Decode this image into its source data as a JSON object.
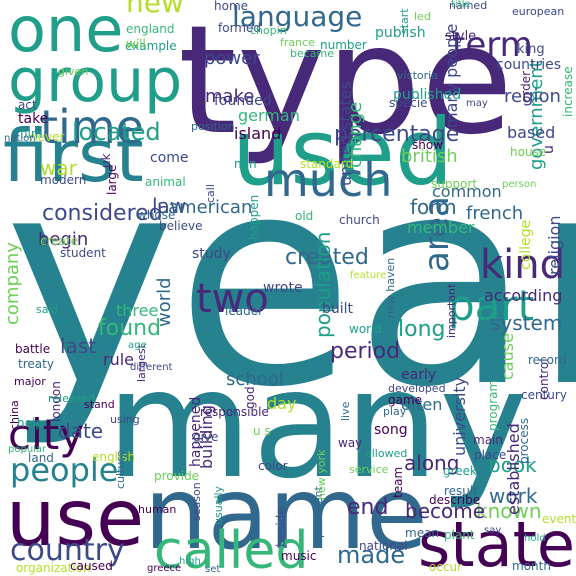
{
  "palette": {
    "background": "#ffffff",
    "colors": [
      "#440154",
      "#482878",
      "#3e4989",
      "#31688e",
      "#26828e",
      "#1f9e89",
      "#35b779",
      "#6ece58",
      "#b5de2b",
      "#fde725"
    ]
  },
  "words": [
    {
      "text": "year",
      "c": "#26828e"
    },
    {
      "text": "many",
      "c": "#26828e"
    },
    {
      "text": "type",
      "c": "#482878"
    },
    {
      "text": "name",
      "c": "#31688e"
    },
    {
      "text": "first",
      "c": "#26828e"
    },
    {
      "text": "used",
      "c": "#1f9e89"
    },
    {
      "text": "use",
      "c": "#440154"
    },
    {
      "text": "state",
      "c": "#440154"
    },
    {
      "text": "called",
      "c": "#35b779"
    },
    {
      "text": "one",
      "c": "#1f9e89"
    },
    {
      "text": "group",
      "c": "#1f9e89"
    },
    {
      "text": "time",
      "c": "#31688e"
    },
    {
      "text": "much",
      "c": "#31688e"
    },
    {
      "text": "city",
      "c": "#440154"
    },
    {
      "text": "people",
      "c": "#26828e"
    },
    {
      "text": "country",
      "c": "#3e4989"
    },
    {
      "text": "kind",
      "c": "#482878"
    },
    {
      "text": "two",
      "c": "#482878"
    },
    {
      "text": "part",
      "c": "#1f9e89"
    },
    {
      "text": "area",
      "c": "#31688e"
    },
    {
      "text": "language",
      "c": "#31688e"
    },
    {
      "text": "term",
      "c": "#482878"
    },
    {
      "text": "located",
      "c": "#1f9e89"
    },
    {
      "text": "new",
      "c": "#b5de2b"
    },
    {
      "text": "made",
      "c": "#31688e"
    },
    {
      "text": "work",
      "c": "#31688e"
    },
    {
      "text": "found",
      "c": "#35b779"
    },
    {
      "text": "percentage",
      "c": "#3e4989"
    },
    {
      "text": "considered",
      "c": "#3e4989"
    },
    {
      "text": "created",
      "c": "#31688e"
    },
    {
      "text": "end",
      "c": "#482878"
    },
    {
      "text": "known",
      "c": "#6ece58"
    },
    {
      "text": "period",
      "c": "#482878"
    },
    {
      "text": "population",
      "c": "#1f9e89"
    },
    {
      "text": "long",
      "c": "#1f9e89"
    },
    {
      "text": "become",
      "c": "#482878"
    },
    {
      "text": "along",
      "c": "#482878"
    },
    {
      "text": "book",
      "c": "#1f9e89"
    },
    {
      "text": "system",
      "c": "#31688e"
    },
    {
      "text": "last",
      "c": "#3e4989"
    },
    {
      "text": "date",
      "c": "#3e4989"
    },
    {
      "text": "law",
      "c": "#3e4989"
    },
    {
      "text": "war",
      "c": "#b5de2b"
    },
    {
      "text": "begin",
      "c": "#482878"
    },
    {
      "text": "form",
      "c": "#31688e"
    },
    {
      "text": "school",
      "c": "#31688e"
    },
    {
      "text": "power",
      "c": "#3e4989"
    },
    {
      "text": "make",
      "c": "#482878"
    },
    {
      "text": "american",
      "c": "#31688e"
    },
    {
      "text": "government",
      "c": "#1f9e89"
    },
    {
      "text": "region",
      "c": "#3e4989"
    },
    {
      "text": "french",
      "c": "#31688e"
    },
    {
      "text": "religion",
      "c": "#3e4989"
    },
    {
      "text": "common",
      "c": "#31688e"
    },
    {
      "text": "member",
      "c": "#35b779"
    },
    {
      "text": "change",
      "c": "#35b779"
    },
    {
      "text": "based",
      "c": "#3e4989"
    },
    {
      "text": "united states",
      "c": "#3e4989"
    },
    {
      "text": "world",
      "c": "#31688e"
    },
    {
      "text": "company",
      "c": "#6ece58"
    },
    {
      "text": "according",
      "c": "#482878"
    },
    {
      "text": "cause",
      "c": "#6ece58"
    },
    {
      "text": "often",
      "c": "#31688e"
    },
    {
      "text": "university",
      "c": "#3e4989"
    },
    {
      "text": "established",
      "c": "#482878"
    },
    {
      "text": "building",
      "c": "#482878"
    },
    {
      "text": "happened",
      "c": "#482878"
    },
    {
      "text": "day",
      "c": "#b5de2b"
    },
    {
      "text": "three",
      "c": "#35b779"
    },
    {
      "text": "rule",
      "c": "#482878"
    },
    {
      "text": "built",
      "c": "#3e4989"
    },
    {
      "text": "early",
      "c": "#482878"
    },
    {
      "text": "founded",
      "c": "#3e4989"
    },
    {
      "text": "german",
      "c": "#35b779"
    },
    {
      "text": "island",
      "c": "#440154"
    },
    {
      "text": "take",
      "c": "#440154"
    },
    {
      "text": "come",
      "c": "#3e4989"
    },
    {
      "text": "study",
      "c": "#3e4989"
    },
    {
      "text": "wrote",
      "c": "#3e4989"
    },
    {
      "text": "many people",
      "c": "#3e4989"
    },
    {
      "text": "british",
      "c": "#6ece58"
    },
    {
      "text": "u",
      "c": "#482878"
    },
    {
      "text": "publish",
      "c": "#1f9e89"
    },
    {
      "text": "countries",
      "c": "#3e4989"
    },
    {
      "text": "style",
      "c": "#482878"
    },
    {
      "text": "king",
      "c": "#3e4989"
    },
    {
      "text": "order",
      "c": "#482878"
    },
    {
      "text": "increase",
      "c": "#35b779"
    },
    {
      "text": "published",
      "c": "#1f9e89"
    },
    {
      "text": "specie",
      "c": "#3e4989"
    },
    {
      "text": "show",
      "c": "#440154"
    },
    {
      "text": "house",
      "c": "#6ece58"
    },
    {
      "text": "never",
      "c": "#b5de2b"
    },
    {
      "text": "modern",
      "c": "#3e4989"
    },
    {
      "text": "large",
      "c": "#440154"
    },
    {
      "text": "animal",
      "c": "#35b779"
    },
    {
      "text": "standard",
      "c": "#b5de2b"
    },
    {
      "text": "support",
      "c": "#6ece58"
    },
    {
      "text": "old",
      "c": "#35b779"
    },
    {
      "text": "church",
      "c": "#3e4989"
    },
    {
      "text": "whose",
      "c": "#31688e"
    },
    {
      "text": "believe",
      "c": "#3e4989"
    },
    {
      "text": "create",
      "c": "#6ece58"
    },
    {
      "text": "student",
      "c": "#3e4989"
    },
    {
      "text": "happen",
      "c": "#1f9e89"
    },
    {
      "text": "new haven",
      "c": "#31688e"
    },
    {
      "text": "important",
      "c": "#482878"
    },
    {
      "text": "college",
      "c": "#b5de2b"
    },
    {
      "text": "world",
      "c": "#1f9e89"
    },
    {
      "text": "leader",
      "c": "#31688e"
    },
    {
      "text": "largest",
      "c": "#482878"
    },
    {
      "text": "london",
      "c": "#482878"
    },
    {
      "text": "treaty",
      "c": "#31688e"
    },
    {
      "text": "battle",
      "c": "#440154"
    },
    {
      "text": "said",
      "c": "#1f9e89"
    },
    {
      "text": "major",
      "c": "#440154"
    },
    {
      "text": "china",
      "c": "#440154"
    },
    {
      "text": "released",
      "c": "#1f9e89"
    },
    {
      "text": "stand",
      "c": "#440154"
    },
    {
      "text": "help",
      "c": "#1f9e89"
    },
    {
      "text": "god",
      "c": "#482878"
    },
    {
      "text": "live",
      "c": "#31688e"
    },
    {
      "text": "developed",
      "c": "#3e4989"
    },
    {
      "text": "game",
      "c": "#440154"
    },
    {
      "text": "play",
      "c": "#31688e"
    },
    {
      "text": "song",
      "c": "#440154"
    },
    {
      "text": "allowed",
      "c": "#1f9e89"
    },
    {
      "text": "way",
      "c": "#482878"
    },
    {
      "text": "land",
      "c": "#31688e"
    },
    {
      "text": "english",
      "c": "#b5de2b"
    },
    {
      "text": "culture",
      "c": "#31688e"
    },
    {
      "text": "provide",
      "c": "#6ece58"
    },
    {
      "text": "human",
      "c": "#440154"
    },
    {
      "text": "color",
      "c": "#3e4989"
    },
    {
      "text": "beside",
      "c": "#3e4989"
    },
    {
      "text": "president",
      "c": "#31688e"
    },
    {
      "text": "service",
      "c": "#6ece58"
    },
    {
      "text": "describe",
      "c": "#440154"
    },
    {
      "text": "greek",
      "c": "#1f9e89"
    },
    {
      "text": "result",
      "c": "#31688e"
    },
    {
      "text": "plant",
      "c": "#35b779"
    },
    {
      "text": "main",
      "c": "#482878"
    },
    {
      "text": "place",
      "c": "#3e4989"
    },
    {
      "text": "process",
      "c": "#31688e"
    },
    {
      "text": "program",
      "c": "#35b779"
    },
    {
      "text": "century",
      "c": "#3e4989"
    },
    {
      "text": "control",
      "c": "#482878"
    },
    {
      "text": "record",
      "c": "#31688e"
    },
    {
      "text": "event",
      "c": "#b5de2b"
    },
    {
      "text": "mean",
      "c": "#31688e"
    },
    {
      "text": "team",
      "c": "#440154"
    },
    {
      "text": "occur",
      "c": "#b5de2b"
    },
    {
      "text": "organization",
      "c": "#b5de2b"
    },
    {
      "text": "caused",
      "c": "#440154"
    },
    {
      "text": "music",
      "c": "#440154"
    },
    {
      "text": "national",
      "c": "#3e4989"
    },
    {
      "text": "month",
      "c": "#31688e"
    },
    {
      "text": "season",
      "c": "#3e4989"
    },
    {
      "text": "new york",
      "c": "#6ece58"
    },
    {
      "text": "usually",
      "c": "#1f9e89"
    },
    {
      "text": "england",
      "c": "#35b779"
    },
    {
      "text": "example",
      "c": "#1f9e89"
    },
    {
      "text": "formed",
      "c": "#3e4989"
    },
    {
      "text": "chopin",
      "c": "#35b779"
    },
    {
      "text": "number",
      "c": "#1f9e89"
    },
    {
      "text": "france",
      "c": "#6ece58"
    },
    {
      "text": "became",
      "c": "#35b779"
    },
    {
      "text": "home",
      "c": "#3e4989"
    },
    {
      "text": "start",
      "c": "#1f9e89"
    },
    {
      "text": "led",
      "c": "#6ece58"
    },
    {
      "text": "named",
      "c": "#3e4989"
    },
    {
      "text": "european",
      "c": "#3e4989"
    },
    {
      "text": "title",
      "c": "#35b779"
    },
    {
      "text": "victoria",
      "c": "#31688e"
    },
    {
      "text": "given",
      "c": "#6ece58"
    },
    {
      "text": "act",
      "c": "#3e4989"
    },
    {
      "text": "film",
      "c": "#1f9e89"
    },
    {
      "text": "uk",
      "c": "#482878"
    },
    {
      "text": "non",
      "c": "#1f9e89"
    },
    {
      "text": "call",
      "c": "#3e4989"
    },
    {
      "text": "position",
      "c": "#31688e"
    },
    {
      "text": "will",
      "c": "#6ece58"
    },
    {
      "text": "may",
      "c": "#3e4989"
    },
    {
      "text": "person",
      "c": "#6ece58"
    },
    {
      "text": "feature",
      "c": "#b5de2b"
    },
    {
      "text": "nation",
      "c": "#31688e"
    },
    {
      "text": "age",
      "c": "#1f9e89"
    },
    {
      "text": "different",
      "c": "#3e4989"
    },
    {
      "text": "popular",
      "c": "#35b779"
    },
    {
      "text": "high",
      "c": "#1f9e89"
    },
    {
      "text": "greece",
      "c": "#440154"
    },
    {
      "text": "set",
      "c": "#31688e"
    },
    {
      "text": "responsible",
      "c": "#482878"
    },
    {
      "text": "give",
      "c": "#3e4989"
    },
    {
      "text": "u s",
      "c": "#6ece58"
    },
    {
      "text": "using",
      "c": "#3e4989"
    },
    {
      "text": "say",
      "c": "#3e4989"
    },
    {
      "text": "hold",
      "c": "#1f9e89"
    },
    {
      "text": "public",
      "c": "#b5de2b"
    }
  ]
}
